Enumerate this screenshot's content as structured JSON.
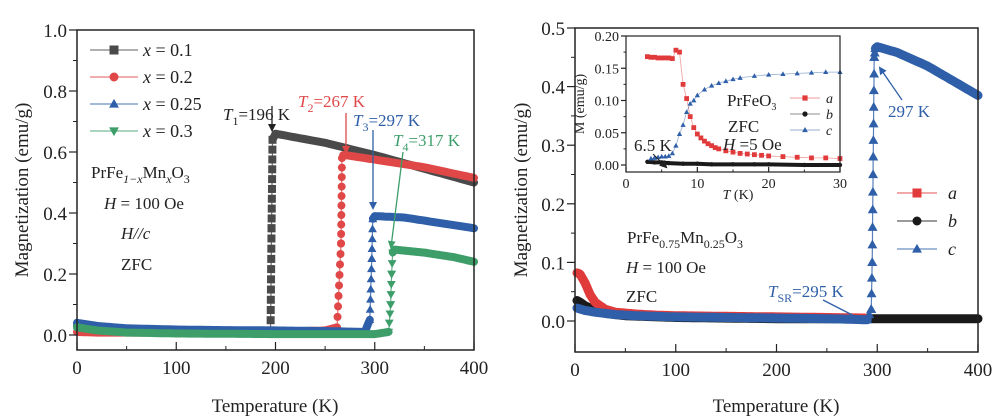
{
  "chart_data": [
    {
      "type": "scatter",
      "panel": "left",
      "title": "",
      "xlabel": "Temperature (K)",
      "ylabel": "Magnetization (emu/g)",
      "xlim": [
        0,
        400
      ],
      "ylim": [
        -0.03,
        1.0
      ],
      "xticks": [
        "0",
        "100",
        "200",
        "300",
        "400"
      ],
      "yticks": [
        "0.0",
        "0.2",
        "0.4",
        "0.6",
        "0.8",
        "1.0"
      ],
      "xtick_values": [
        0,
        100,
        200,
        300,
        400
      ],
      "ytick_values": [
        0.0,
        0.2,
        0.4,
        0.6,
        0.8,
        1.0
      ],
      "legend_placement": "top-left",
      "series": [
        {
          "name": "x = 0.1",
          "legend_var": "x",
          "legend_val": " = 0.1",
          "color": "#4a4a4a",
          "marker": "square",
          "transition_T": 196,
          "x": [
            0,
            20,
            50,
            100,
            150,
            190,
            195,
            196,
            197,
            200,
            250,
            300,
            350,
            400
          ],
          "y": [
            0.03,
            0.02,
            0.015,
            0.012,
            0.01,
            0.01,
            0.015,
            0.35,
            0.64,
            0.66,
            0.63,
            0.59,
            0.545,
            0.5
          ]
        },
        {
          "name": "x = 0.2",
          "legend_var": "x",
          "legend_val": " = 0.2",
          "color": "#e04848",
          "marker": "circle",
          "transition_T": 267,
          "x": [
            0,
            20,
            50,
            100,
            150,
            200,
            250,
            262,
            266,
            267,
            268,
            270,
            300,
            350,
            400
          ],
          "y": [
            0.01,
            0.008,
            0.008,
            0.008,
            0.008,
            0.01,
            0.015,
            0.025,
            0.3,
            0.58,
            0.59,
            0.59,
            0.575,
            0.55,
            0.515
          ]
        },
        {
          "name": "x = 0.25",
          "legend_var": "x",
          "legend_val": " = 0.25",
          "color": "#2e5fa8",
          "marker": "triangle-up",
          "transition_T": 297,
          "x": [
            0,
            20,
            50,
            100,
            150,
            200,
            250,
            290,
            295,
            297,
            298,
            300,
            330,
            360,
            400
          ],
          "y": [
            0.04,
            0.03,
            0.022,
            0.018,
            0.016,
            0.015,
            0.013,
            0.01,
            0.05,
            0.25,
            0.38,
            0.39,
            0.385,
            0.37,
            0.35
          ]
        },
        {
          "name": "x = 0.3",
          "legend_var": "x",
          "legend_val": " = 0.3",
          "color": "#3d9e6a",
          "marker": "triangle-down",
          "transition_T": 317,
          "x": [
            0,
            20,
            50,
            100,
            150,
            200,
            250,
            300,
            314,
            316,
            317,
            318,
            320,
            350,
            380,
            400
          ],
          "y": [
            0.025,
            0.015,
            0.008,
            0.005,
            0.004,
            0.003,
            0.003,
            0.003,
            0.01,
            0.1,
            0.2,
            0.27,
            0.28,
            0.27,
            0.255,
            0.24
          ]
        }
      ],
      "annotations": {
        "compound_prefix": "PrFe",
        "compound_sub1": "1−x",
        "compound_mid": "Mn",
        "compound_sub2": "x",
        "compound_suffix": "O",
        "compound_sub3": "3",
        "field_var": "H",
        "field_val": " = 100 Oe",
        "direction": "H//c",
        "mode": "ZFC",
        "transitions": [
          {
            "symbol": "T",
            "sub": "1",
            "text": "=196 K",
            "color": "#222222",
            "T": 196,
            "M": 0.66
          },
          {
            "symbol": "T",
            "sub": "2",
            "text": "=267 K",
            "color": "#e04848",
            "T": 267,
            "M": 0.59
          },
          {
            "symbol": "T",
            "sub": "3",
            "text": "=297 K",
            "color": "#2e5fa8",
            "T": 297,
            "M": 0.39
          },
          {
            "symbol": "T",
            "sub": "4",
            "text": "=317 K",
            "color": "#3d9e6a",
            "T": 317,
            "M": 0.28
          }
        ]
      }
    },
    {
      "type": "scatter",
      "panel": "right",
      "title": "",
      "xlabel": "Temperature (K)",
      "ylabel": "Magnetization (emu/g)",
      "xlim": [
        0,
        400
      ],
      "ylim": [
        -0.045,
        0.5
      ],
      "xticks": [
        "0",
        "100",
        "200",
        "300",
        "400"
      ],
      "yticks": [
        "0.0",
        "0.1",
        "0.2",
        "0.3",
        "0.4",
        "0.5"
      ],
      "xtick_values": [
        0,
        100,
        200,
        300,
        400
      ],
      "ytick_values": [
        0.0,
        0.1,
        0.2,
        0.3,
        0.4,
        0.5
      ],
      "legend_placement": "right",
      "series": [
        {
          "name": "a",
          "color": "#e03a3a",
          "marker": "square",
          "x": [
            2,
            5,
            10,
            15,
            20,
            30,
            40,
            60,
            80,
            100,
            150,
            200,
            250,
            290
          ],
          "y": [
            0.082,
            0.08,
            0.065,
            0.045,
            0.032,
            0.02,
            0.015,
            0.012,
            0.01,
            0.009,
            0.008,
            0.007,
            0.006,
            0.005
          ]
        },
        {
          "name": "b",
          "color": "#1a1a1a",
          "marker": "circle",
          "x": [
            2,
            5,
            10,
            20,
            30,
            50,
            100,
            150,
            200,
            250,
            300,
            350,
            400
          ],
          "y": [
            0.035,
            0.032,
            0.026,
            0.018,
            0.013,
            0.009,
            0.006,
            0.005,
            0.004,
            0.004,
            0.004,
            0.004,
            0.004
          ]
        },
        {
          "name": "c",
          "color": "#2e5fa8",
          "marker": "triangle-up",
          "x": [
            2,
            10,
            20,
            40,
            60,
            100,
            150,
            200,
            250,
            290,
            294,
            295,
            296,
            297,
            298,
            300,
            320,
            350,
            380,
            400
          ],
          "y": [
            0.022,
            0.018,
            0.015,
            0.011,
            0.009,
            0.007,
            0.006,
            0.005,
            0.004,
            0.002,
            0.02,
            0.1,
            0.28,
            0.45,
            0.465,
            0.468,
            0.458,
            0.435,
            0.405,
            0.385
          ]
        }
      ],
      "annotations": {
        "compound_prefix": "PrFe",
        "compound_sub1": "0.75",
        "compound_mid": "Mn",
        "compound_sub2": "0.25",
        "compound_suffix": "O",
        "compound_sub3": "3",
        "field_var": "H",
        "field_val": " = 100 Oe",
        "mode": "ZFC",
        "tsr_symbol": "T",
        "tsr_sub": "SR",
        "tsr_text": "=295 K",
        "tsr_T": 295,
        "peak_label": "297 K",
        "peak_T": 297
      }
    },
    {
      "type": "scatter",
      "panel": "inset",
      "title": "",
      "xlabel_var": "T",
      "xlabel_unit": " (K)",
      "ylabel": "M (emu/g)",
      "xlim": [
        0,
        30
      ],
      "ylim": [
        -0.005,
        0.2
      ],
      "xticks": [
        "0",
        "10",
        "20",
        "30"
      ],
      "yticks": [
        "0.00",
        "0.05",
        "0.10",
        "0.15",
        "0.20"
      ],
      "xtick_values": [
        0,
        10,
        20,
        30
      ],
      "ytick_values": [
        0.0,
        0.05,
        0.1,
        0.15,
        0.2
      ],
      "legend_placement": "center-right",
      "series": [
        {
          "name": "a",
          "color": "#e03a3a",
          "marker": "square",
          "x": [
            3.0,
            3.5,
            4.0,
            4.5,
            5.0,
            5.5,
            6.0,
            6.5,
            7.0,
            7.5,
            8.0,
            8.5,
            9.0,
            9.5,
            10.0,
            10.5,
            11.0,
            11.5,
            12.0,
            12.5,
            13.0,
            14.0,
            15.0,
            16.0,
            17.0,
            18.0,
            19.0,
            20.0,
            22.0,
            24.0,
            26.0,
            28.0,
            30.0
          ],
          "y": [
            0.168,
            0.167,
            0.167,
            0.166,
            0.166,
            0.166,
            0.166,
            0.165,
            0.178,
            0.175,
            0.125,
            0.103,
            0.075,
            0.058,
            0.048,
            0.042,
            0.037,
            0.033,
            0.03,
            0.027,
            0.025,
            0.022,
            0.02,
            0.018,
            0.017,
            0.016,
            0.015,
            0.014,
            0.013,
            0.012,
            0.011,
            0.011,
            0.01
          ]
        },
        {
          "name": "b",
          "color": "#1a1a1a",
          "marker": "circle",
          "x": [
            3,
            4,
            5,
            6,
            8,
            10,
            12,
            15,
            18,
            20,
            25,
            30
          ],
          "y": [
            0.005,
            0.004,
            0.004,
            0.003,
            0.002,
            0.002,
            0.001,
            0.001,
            0.001,
            0.001,
            0.0,
            0.0
          ]
        },
        {
          "name": "c",
          "color": "#2e5fa8",
          "marker": "triangle-up",
          "x": [
            3.5,
            4.0,
            4.5,
            5.0,
            5.5,
            6.0,
            6.5,
            7.0,
            7.5,
            8.0,
            8.5,
            9.0,
            9.5,
            10.0,
            11.0,
            12.0,
            13.0,
            14.0,
            15.0,
            16.0,
            18.0,
            20.0,
            22.0,
            24.0,
            26.0,
            28.0,
            30.0
          ],
          "y": [
            0.01,
            0.011,
            0.012,
            0.013,
            0.013,
            0.014,
            0.018,
            0.03,
            0.048,
            0.062,
            0.082,
            0.095,
            0.1,
            0.108,
            0.117,
            0.123,
            0.127,
            0.13,
            0.133,
            0.135,
            0.138,
            0.14,
            0.141,
            0.142,
            0.143,
            0.144,
            0.144
          ]
        }
      ],
      "annotations": {
        "compound_prefix": "PrFeO",
        "compound_sub": "3",
        "mode": "ZFC",
        "field_var": "H",
        "field_val": " =5 Oe",
        "arrow_label": "6.5 K",
        "arrow_T": 6.5
      }
    }
  ]
}
